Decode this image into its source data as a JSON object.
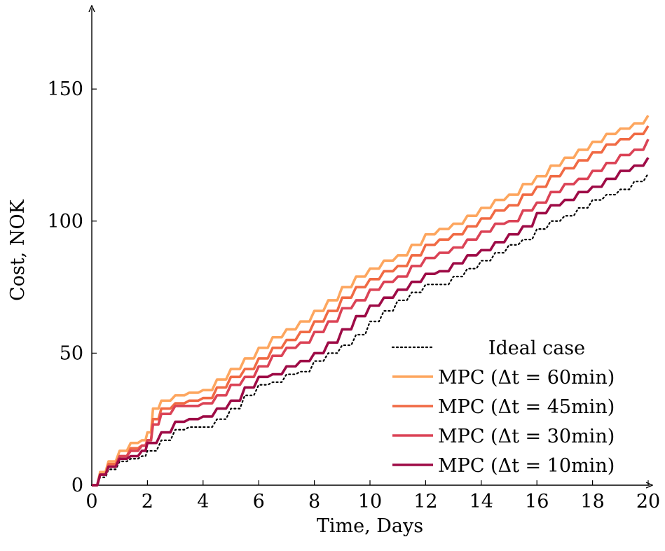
{
  "chart_data": {
    "type": "line",
    "xlabel": "Time, Days",
    "ylabel": "Cost, NOK",
    "xlim": [
      0,
      20
    ],
    "ylim": [
      0,
      180
    ],
    "xticks": [
      0,
      2,
      4,
      6,
      8,
      10,
      12,
      14,
      16,
      18,
      20
    ],
    "yticks": [
      0,
      50,
      100,
      150
    ],
    "grid": false,
    "legend_position": "bottom-right",
    "series": [
      {
        "name": "Ideal case",
        "color": "#000000",
        "style": "dotted",
        "x": [
          0,
          0.3,
          0.6,
          1,
          1.4,
          1.8,
          2,
          2.5,
          3,
          3.5,
          4,
          4.5,
          5,
          5.5,
          6,
          6.5,
          7,
          7.5,
          8,
          8.5,
          9,
          9.5,
          10,
          10.5,
          11,
          11.5,
          12,
          12.5,
          13,
          13.5,
          14,
          14.5,
          15,
          15.5,
          16,
          16.5,
          17,
          17.5,
          18,
          18.5,
          19,
          19.5,
          20
        ],
        "y": [
          0,
          3,
          6,
          9,
          10,
          11,
          13,
          17,
          21,
          22,
          22,
          25,
          29,
          34,
          38,
          39,
          42,
          43,
          47,
          50,
          53,
          57,
          62,
          66,
          70,
          73,
          76,
          76,
          79,
          82,
          85,
          88,
          91,
          93,
          97,
          100,
          102,
          105,
          108,
          110,
          112,
          115,
          118
        ]
      },
      {
        "name": "MPC (Δt = 60min)",
        "color": "#fda65f",
        "style": "solid",
        "x": [
          0,
          0.3,
          0.6,
          1,
          1.4,
          1.8,
          2,
          2.2,
          2.5,
          3,
          3.5,
          4,
          4.5,
          5,
          5.5,
          6,
          6.5,
          7,
          7.5,
          8,
          8.5,
          9,
          9.5,
          10,
          10.5,
          11,
          11.5,
          12,
          12.5,
          13,
          13.5,
          14,
          14.5,
          15,
          15.5,
          16,
          16.5,
          17,
          17.5,
          18,
          18.5,
          19,
          19.5,
          20
        ],
        "y": [
          0,
          5,
          9,
          13,
          16,
          17,
          20,
          29,
          32,
          34,
          35,
          36,
          40,
          44,
          48,
          52,
          56,
          59,
          62,
          66,
          70,
          75,
          79,
          82,
          85,
          87,
          91,
          95,
          97,
          99,
          102,
          105,
          108,
          110,
          114,
          117,
          121,
          124,
          127,
          130,
          133,
          135,
          137,
          140
        ]
      },
      {
        "name": "MPC (Δt = 45min)",
        "color": "#f06a44",
        "style": "solid",
        "x": [
          0,
          0.3,
          0.6,
          1,
          1.4,
          1.8,
          2,
          2.2,
          2.5,
          3,
          3.5,
          4,
          4.5,
          5,
          5.5,
          6,
          6.5,
          7,
          7.5,
          8,
          8.5,
          9,
          9.5,
          10,
          10.5,
          11,
          11.5,
          12,
          12.5,
          13,
          13.5,
          14,
          14.5,
          15,
          15.5,
          16,
          16.5,
          17,
          17.5,
          18,
          18.5,
          19,
          19.5,
          20
        ],
        "y": [
          0,
          4,
          8,
          11,
          14,
          15,
          17,
          25,
          29,
          31,
          32,
          33,
          37,
          41,
          44,
          48,
          52,
          55,
          58,
          62,
          66,
          71,
          75,
          78,
          81,
          83,
          87,
          91,
          93,
          95,
          98,
          101,
          104,
          106,
          110,
          113,
          117,
          120,
          123,
          126,
          129,
          131,
          133,
          136
        ]
      },
      {
        "name": "MPC (Δt = 30min)",
        "color": "#db4356",
        "style": "solid",
        "x": [
          0,
          0.3,
          0.6,
          1,
          1.4,
          1.8,
          2,
          2.2,
          2.5,
          3,
          3.5,
          4,
          4.5,
          5,
          5.5,
          6,
          6.5,
          7,
          7.5,
          8,
          8.5,
          9,
          9.5,
          10,
          10.5,
          11,
          11.5,
          12,
          12.5,
          13,
          13.5,
          14,
          14.5,
          15,
          15.5,
          16,
          16.5,
          17,
          17.5,
          18,
          18.5,
          19,
          19.5,
          20
        ],
        "y": [
          0,
          4,
          7,
          11,
          13,
          15,
          17,
          23,
          27,
          30,
          30,
          31,
          34,
          38,
          41,
          45,
          49,
          52,
          54,
          58,
          62,
          67,
          70,
          74,
          77,
          79,
          83,
          86,
          88,
          90,
          93,
          96,
          99,
          100,
          104,
          107,
          111,
          114,
          116,
          119,
          122,
          125,
          127,
          131
        ]
      },
      {
        "name": "MPC (Δt = 10min)",
        "color": "#9e0b46",
        "style": "solid",
        "x": [
          0,
          0.3,
          0.6,
          1,
          1.4,
          1.8,
          2,
          2.5,
          3,
          3.5,
          4,
          4.5,
          5,
          5.5,
          6,
          6.5,
          7,
          7.5,
          8,
          8.5,
          9,
          9.5,
          10,
          10.5,
          11,
          11.5,
          12,
          12.5,
          13,
          13.5,
          14,
          14.5,
          15,
          15.5,
          16,
          16.5,
          17,
          17.5,
          18,
          18.5,
          19,
          19.5,
          20
        ],
        "y": [
          0,
          4,
          7,
          10,
          11,
          13,
          16,
          20,
          24,
          25,
          26,
          29,
          32,
          37,
          41,
          42,
          45,
          47,
          50,
          54,
          59,
          64,
          68,
          71,
          74,
          77,
          80,
          81,
          84,
          87,
          89,
          92,
          95,
          98,
          103,
          106,
          108,
          111,
          113,
          116,
          119,
          121,
          124
        ]
      }
    ]
  }
}
